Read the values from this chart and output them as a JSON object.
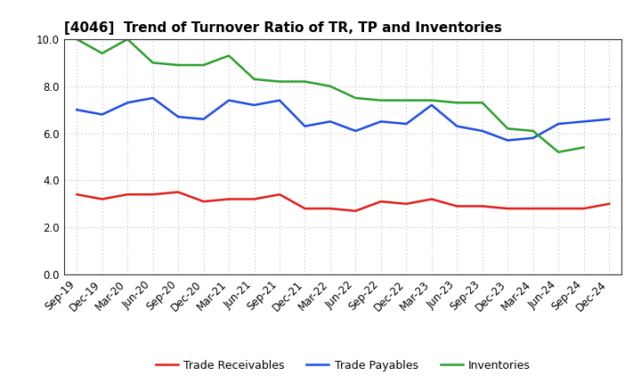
{
  "title": "[4046]  Trend of Turnover Ratio of TR, TP and Inventories",
  "x_labels": [
    "Sep-19",
    "Dec-19",
    "Mar-20",
    "Jun-20",
    "Sep-20",
    "Dec-20",
    "Mar-21",
    "Jun-21",
    "Sep-21",
    "Dec-21",
    "Mar-22",
    "Jun-22",
    "Sep-22",
    "Dec-22",
    "Mar-23",
    "Jun-23",
    "Sep-23",
    "Dec-23",
    "Mar-24",
    "Jun-24",
    "Sep-24",
    "Dec-24"
  ],
  "trade_receivables": [
    3.4,
    3.2,
    3.4,
    3.4,
    3.5,
    3.1,
    3.2,
    3.2,
    3.4,
    2.8,
    2.8,
    2.7,
    3.1,
    3.0,
    3.2,
    2.9,
    2.9,
    2.8,
    2.8,
    2.8,
    2.8,
    3.0
  ],
  "trade_payables": [
    7.0,
    6.8,
    7.3,
    7.5,
    6.7,
    6.6,
    7.4,
    7.2,
    7.4,
    6.3,
    6.5,
    6.1,
    6.5,
    6.4,
    7.2,
    6.3,
    6.1,
    5.7,
    5.8,
    6.4,
    6.5,
    6.6
  ],
  "inventories": [
    10.0,
    9.4,
    10.0,
    9.0,
    8.9,
    8.9,
    9.3,
    8.3,
    8.2,
    8.2,
    8.0,
    7.5,
    7.4,
    7.4,
    7.4,
    7.3,
    7.3,
    6.2,
    6.1,
    5.2,
    5.4,
    null
  ],
  "ylim": [
    0.0,
    10.0
  ],
  "yticks": [
    0.0,
    2.0,
    4.0,
    6.0,
    8.0,
    10.0
  ],
  "line_colors": {
    "trade_receivables": "#e0201c",
    "trade_payables": "#1f4de4",
    "inventories": "#2ca02c"
  },
  "legend_labels": [
    "Trade Receivables",
    "Trade Payables",
    "Inventories"
  ],
  "background_color": "#ffffff",
  "grid_color": "#aaaaaa",
  "line_width": 1.8,
  "title_fontsize": 11,
  "tick_fontsize": 8.5,
  "legend_fontsize": 9
}
